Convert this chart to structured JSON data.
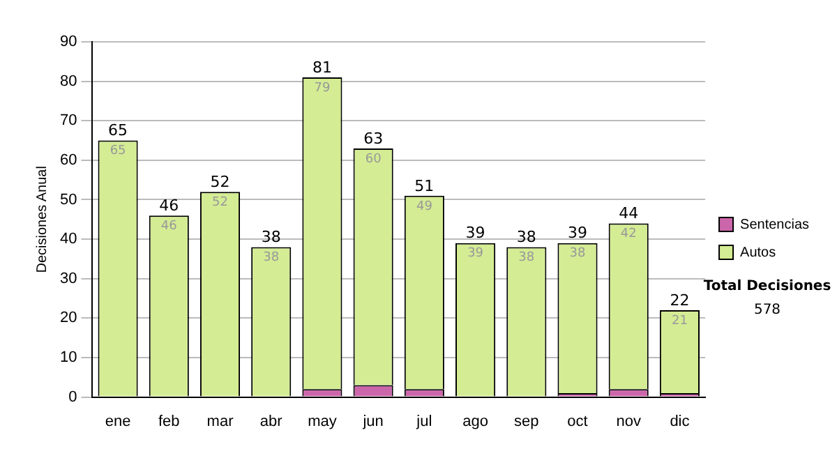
{
  "chart_data": {
    "type": "bar",
    "stacked": true,
    "ylabel": "Decisiones Anual",
    "categories": [
      "ene",
      "feb",
      "mar",
      "abr",
      "may",
      "jun",
      "jul",
      "ago",
      "sep",
      "oct",
      "nov",
      "dic"
    ],
    "series": [
      {
        "name": "Sentencias",
        "color": "#cc66aa",
        "values": [
          0,
          0,
          0,
          0,
          2,
          3,
          2,
          0,
          0,
          1,
          2,
          1
        ]
      },
      {
        "name": "Autos",
        "color": "#d4ec94",
        "values": [
          65,
          46,
          52,
          38,
          79,
          60,
          49,
          39,
          38,
          38,
          42,
          21
        ],
        "value_labels": [
          "65",
          "46",
          "52",
          "38",
          "79",
          "60",
          "49",
          "39",
          "38",
          "38",
          "42",
          "21"
        ]
      }
    ],
    "totals": [
      "65",
      "46",
      "52",
      "38",
      "81",
      "63",
      "51",
      "39",
      "38",
      "39",
      "44",
      "22"
    ],
    "ylim": [
      0,
      90
    ],
    "yticks": [
      0,
      10,
      20,
      30,
      40,
      50,
      60,
      70,
      80,
      90
    ],
    "grid": "y",
    "legend": "right",
    "annotations": [
      "Total Decisiones",
      "578"
    ]
  }
}
